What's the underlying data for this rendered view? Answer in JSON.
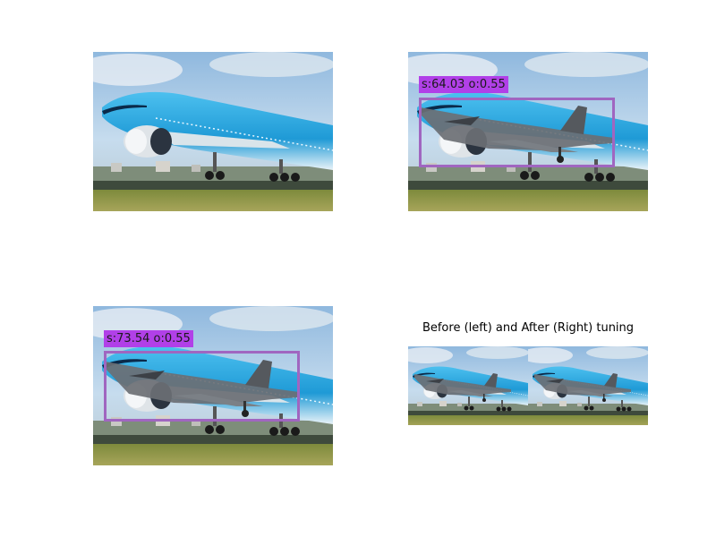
{
  "panels": {
    "top_left": {
      "image": "klm-airliner-takeoff"
    },
    "top_right": {
      "image": "klm-airliner-with-fighter-jet-overlay",
      "detection_label": "s:64.03 o:0.55"
    },
    "bottom_left": {
      "image": "klm-airliner-with-fighter-jet-overlay",
      "detection_label": "s:73.54 o:0.55"
    },
    "bottom_right": {
      "title": "Before (left) and After (Right) tuning",
      "left_image": "before-tuning",
      "right_image": "after-tuning"
    }
  },
  "colors": {
    "box_border": "#a066c0",
    "label_background": "#b140e8",
    "fuselage_blue": "#2aa6e0",
    "sky": "#a9cbe6",
    "grass": "#8f9b4a",
    "jet_gray": "#6b6f74"
  }
}
